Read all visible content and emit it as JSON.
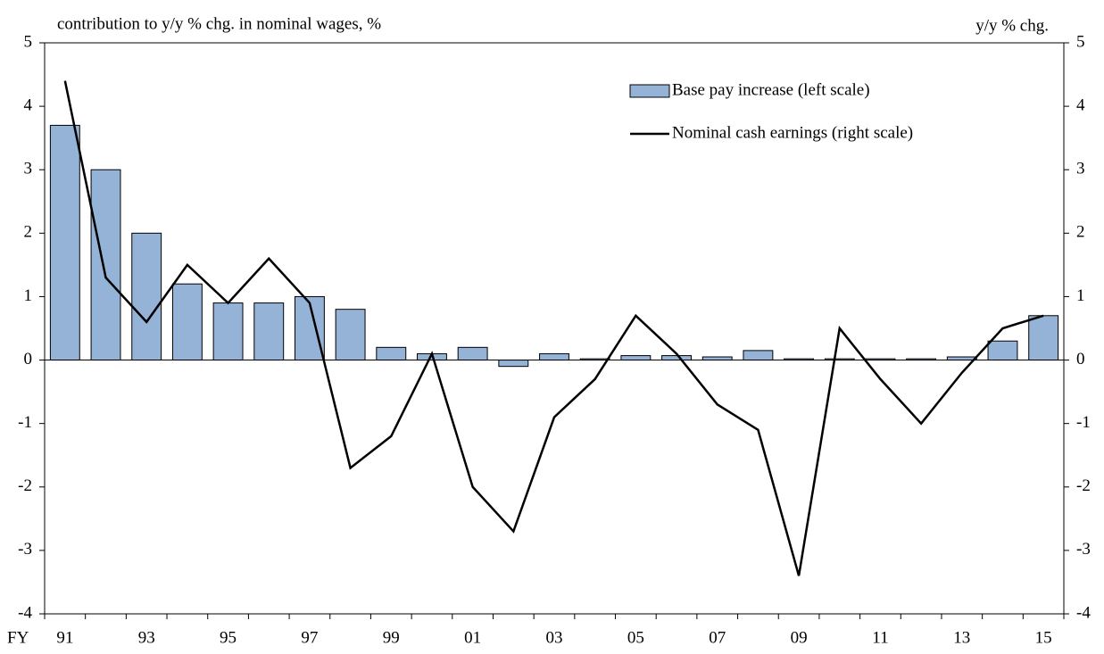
{
  "chart_data": {
    "type": "bar_line",
    "ylabel": "contribution to y/y % chg. in nominal wages, %",
    "y2label": "y/y % chg.",
    "xlabel": "FY",
    "categories": [
      "91",
      null,
      "93",
      null,
      "95",
      null,
      "97",
      null,
      "99",
      null,
      "01",
      null,
      "03",
      null,
      "05",
      null,
      "07",
      null,
      "09",
      null,
      "11",
      null,
      "13",
      null,
      "15"
    ],
    "series": [
      {
        "name": "Base pay increase (left scale)",
        "type": "bar",
        "color": "#95b3d7",
        "values": [
          3.7,
          3.0,
          2.0,
          1.2,
          0.9,
          0.9,
          1.0,
          0.8,
          0.2,
          0.1,
          0.2,
          -0.1,
          0.1,
          0.02,
          0.07,
          0.07,
          0.05,
          0.15,
          0.02,
          0.02,
          0.02,
          0.02,
          0.05,
          0.3,
          0.7
        ]
      },
      {
        "name": "Nominal cash earnings (right scale)",
        "type": "line",
        "axis": "y2",
        "color": "#000000",
        "values": [
          4.4,
          1.3,
          0.6,
          1.5,
          0.9,
          1.6,
          0.9,
          -1.7,
          -1.2,
          0.1,
          -2.0,
          -2.7,
          -0.9,
          -0.3,
          0.7,
          0.1,
          -0.7,
          -1.1,
          -3.4,
          0.5,
          -0.3,
          -1.0,
          -0.2,
          0.5,
          0.7
        ]
      }
    ],
    "ylim": [
      -4,
      5
    ],
    "yticks": [
      -4,
      -3,
      -2,
      -1,
      0,
      1,
      2,
      3,
      4,
      5
    ],
    "y2lim": [
      -4,
      5
    ],
    "y2ticks": [
      -4,
      -3,
      -2,
      -1,
      0,
      1,
      2,
      3,
      4,
      5
    ],
    "legend": "top-right"
  }
}
